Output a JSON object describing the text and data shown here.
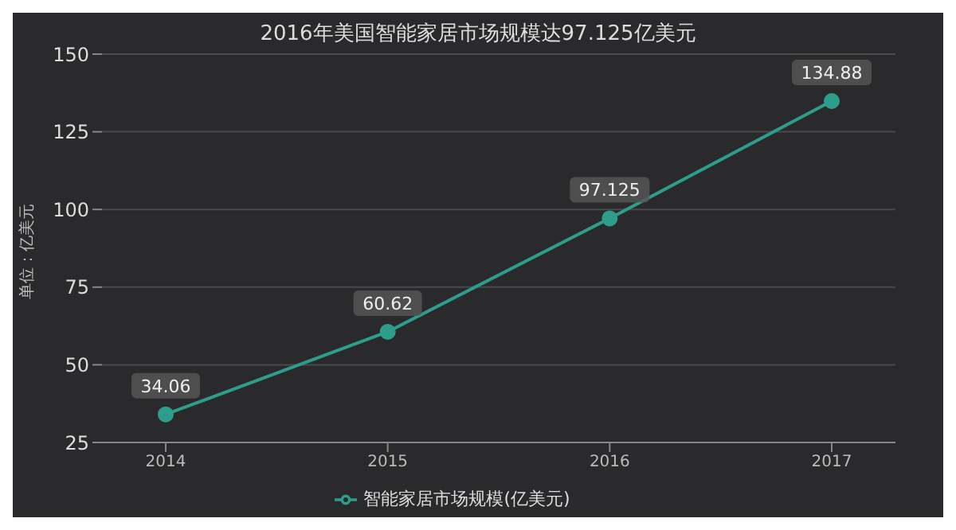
{
  "chart_data": {
    "type": "line",
    "title": "2016年美国智能家居市场规模达97.125亿美元",
    "ylabel": "单位：亿美元",
    "categories": [
      "2014",
      "2015",
      "2016",
      "2017"
    ],
    "series": [
      {
        "name": "智能家居市场规模(亿美元)",
        "color": "#2e9e8c",
        "values": [
          34.06,
          60.62,
          97.125,
          134.88
        ]
      }
    ],
    "ylim": [
      25,
      150
    ],
    "yticks": [
      25,
      50,
      75,
      100,
      125,
      150
    ],
    "grid": "y",
    "legend": "bottom",
    "marker": "circle",
    "data_labels": true
  }
}
